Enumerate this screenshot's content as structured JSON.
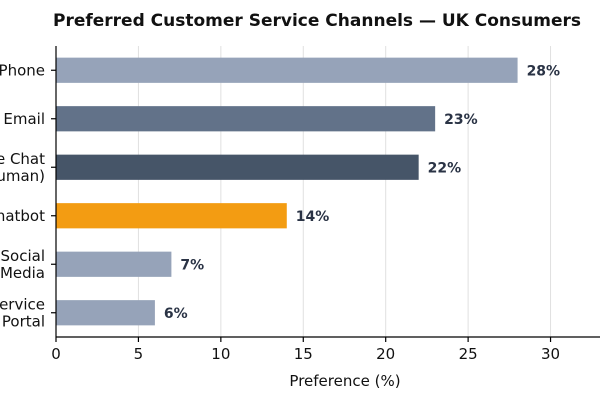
{
  "chart_data": {
    "type": "bar",
    "orientation": "horizontal",
    "title": "Preferred Customer Service Channels — UK Consumers",
    "xlabel": "Preference (%)",
    "ylabel": "",
    "xlim": [
      0,
      33
    ],
    "xticks": [
      0,
      5,
      10,
      15,
      20,
      25,
      30
    ],
    "grid": "vertical",
    "categories": [
      [
        "Phone"
      ],
      [
        "Email"
      ],
      [
        "Live Chat",
        "(Human)"
      ],
      [
        "AI Chatbot"
      ],
      [
        "Social",
        "Media"
      ],
      [
        "Self-Service",
        "Portal"
      ]
    ],
    "values": [
      28,
      23,
      22,
      14,
      7,
      6
    ],
    "value_labels": [
      "28%",
      "23%",
      "22%",
      "14%",
      "7%",
      "6%"
    ],
    "colors": [
      "#96a3b9",
      "#627289",
      "#465568",
      "#f39c12",
      "#96a3b9",
      "#96a3b9"
    ]
  }
}
